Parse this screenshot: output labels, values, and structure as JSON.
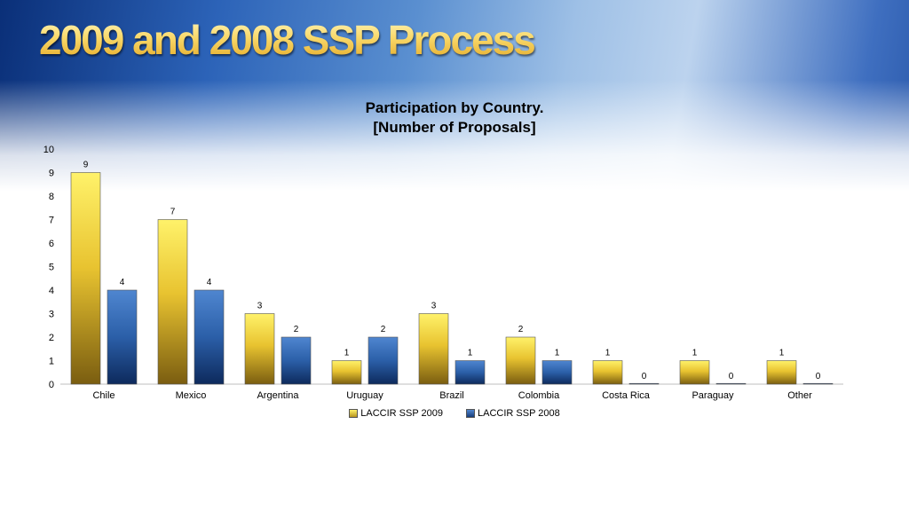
{
  "slide": {
    "title": "2009 and 2008 SSP Process"
  },
  "chart_data": {
    "type": "bar",
    "title_lines": [
      "Participation by Country.",
      "[Number of Proposals]"
    ],
    "categories": [
      "Chile",
      "Mexico",
      "Argentina",
      "Uruguay",
      "Brazil",
      "Colombia",
      "Costa Rica",
      "Paraguay",
      "Other"
    ],
    "series": [
      {
        "name": "LACCIR SSP 2009",
        "values": [
          9,
          7,
          3,
          1,
          3,
          2,
          1,
          1,
          1
        ],
        "color": "#e8c330"
      },
      {
        "name": "LACCIR SSP 2008",
        "values": [
          4,
          4,
          2,
          2,
          1,
          1,
          0,
          0,
          0
        ],
        "color": "#2b5fa8"
      }
    ],
    "ylim": [
      0,
      10
    ],
    "yticks": [
      0,
      1,
      2,
      3,
      4,
      5,
      6,
      7,
      8,
      9,
      10
    ],
    "data_labels": true,
    "legend_position": "bottom",
    "grid": false
  }
}
